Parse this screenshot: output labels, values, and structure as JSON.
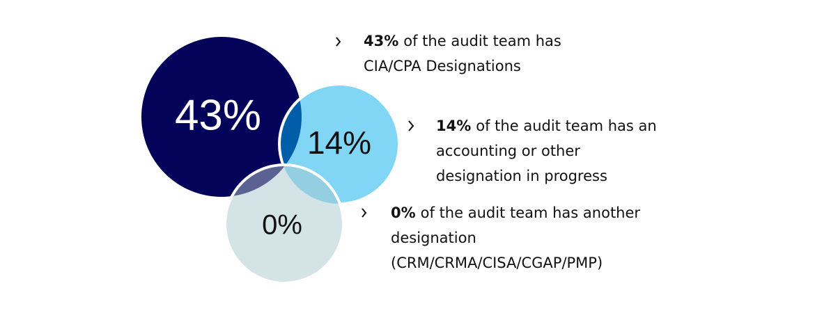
{
  "items": [
    {
      "percent": "43%",
      "lines": [
        "of the audit team has",
        "CIA/CPA Designations"
      ]
    },
    {
      "percent": "14%",
      "lines": [
        "of the audit team has an",
        "accounting or other",
        "designation in progress"
      ]
    },
    {
      "percent": "0%",
      "lines": [
        "of the audit team has another",
        "designation",
        "(CRM/CRMA/CISA/CGAP/PMP)"
      ]
    }
  ]
}
